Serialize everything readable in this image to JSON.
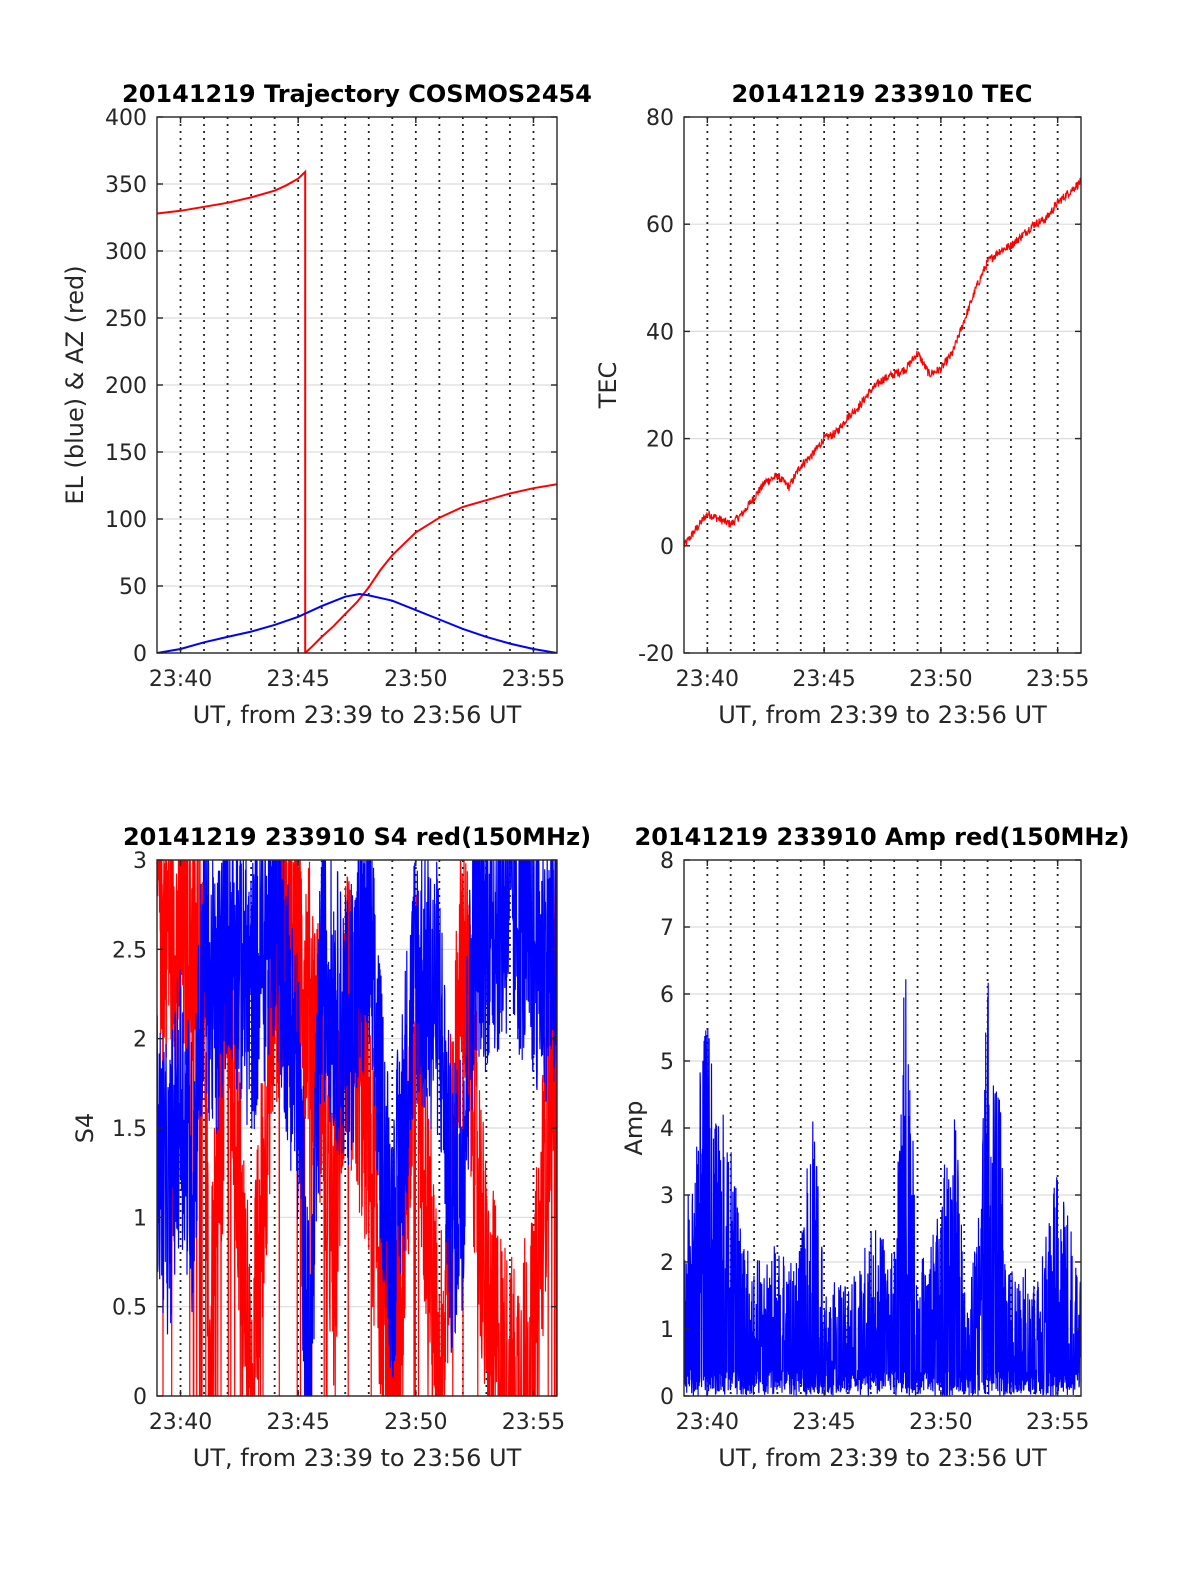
{
  "chart_data": [
    {
      "type": "line",
      "title": "20141219 Trajectory COSMOS2454",
      "xlabel": "UT, from 23:39 to 23:56 UT",
      "ylabel": "EL (blue) & AZ (red)",
      "xlim": [
        "23:39",
        "23:56"
      ],
      "ylim": [
        0,
        400
      ],
      "xticks": [
        "23:40",
        "23:45",
        "23:50",
        "23:55"
      ],
      "yticks": [
        "0",
        "50",
        "100",
        "150",
        "200",
        "250",
        "300",
        "350",
        "400"
      ],
      "grid": true,
      "series": [
        {
          "color": "#ff0000",
          "x": [
            "23:39",
            "23:40",
            "23:41",
            "23:42",
            "23:43",
            "23:44",
            "23:44.5",
            "23:45",
            "23:45.3",
            "23:45.3",
            "23:45.6",
            "23:46",
            "23:46.5",
            "23:47",
            "23:47.5",
            "23:48",
            "23:48.5",
            "23:49",
            "23:50",
            "23:51",
            "23:52",
            "23:53",
            "23:54",
            "23:55",
            "23:56"
          ],
          "values": [
            328,
            330,
            333,
            336,
            340,
            345,
            349,
            354,
            359,
            0,
            5,
            12,
            20,
            29,
            38,
            49,
            62,
            73,
            90,
            101,
            109,
            114,
            119,
            123,
            126
          ]
        },
        {
          "color": "#0000ff",
          "x": [
            "23:39",
            "23:40",
            "23:41",
            "23:42",
            "23:43",
            "23:44",
            "23:45",
            "23:46",
            "23:47",
            "23:47.6",
            "23:48",
            "23:49",
            "23:50",
            "23:51",
            "23:52",
            "23:53",
            "23:54",
            "23:55",
            "23:56"
          ],
          "values": [
            0,
            3,
            8,
            12,
            16,
            21,
            27,
            35,
            42,
            44,
            43,
            39,
            32,
            25,
            18,
            12,
            7,
            3,
            0
          ]
        }
      ]
    },
    {
      "type": "line",
      "title": "20141219 233910 TEC",
      "xlabel": "UT, from 23:39 to 23:56 UT",
      "ylabel": "TEC",
      "xlim": [
        "23:39",
        "23:56"
      ],
      "ylim": [
        -20,
        80
      ],
      "xticks": [
        "23:40",
        "23:45",
        "23:50",
        "23:55"
      ],
      "yticks": [
        "-20",
        "0",
        "20",
        "40",
        "60",
        "80"
      ],
      "grid": true,
      "series": [
        {
          "color": "#ff0000",
          "x": [
            "23:39",
            "23:39.5",
            "23:40",
            "23:40.5",
            "23:41",
            "23:41.5",
            "23:42",
            "23:42.5",
            "23:43",
            "23:43.5",
            "23:44",
            "23:44.5",
            "23:45",
            "23:45.5",
            "23:46",
            "23:46.5",
            "23:47",
            "23:47.5",
            "23:48",
            "23:48.5",
            "23:49",
            "23:49.5",
            "23:50",
            "23:50.5",
            "23:51",
            "23:51.5",
            "23:52",
            "23:52.5",
            "23:53",
            "23:53.5",
            "23:54",
            "23:54.5",
            "23:55",
            "23:55.5",
            "23:56"
          ],
          "values": [
            0,
            3,
            6,
            5,
            4,
            6,
            9,
            12,
            13,
            11,
            15,
            17,
            20,
            21,
            24,
            26,
            29,
            31,
            32,
            33,
            36,
            32,
            33,
            36,
            42,
            48,
            53,
            55,
            56,
            58,
            60,
            61,
            64,
            66,
            68
          ]
        }
      ]
    },
    {
      "type": "line",
      "title": "20141219 233910 S4 red(150MHz)",
      "xlabel": "UT, from 23:39 to 23:56 UT",
      "ylabel": "S4",
      "xlim": [
        "23:39",
        "23:56"
      ],
      "ylim": [
        0,
        3
      ],
      "xticks": [
        "23:40",
        "23:45",
        "23:50",
        "23:55"
      ],
      "yticks": [
        "0",
        "0.5",
        "1",
        "1.5",
        "2",
        "2.5",
        "3"
      ],
      "grid": true,
      "series": [
        {
          "color": "#ff0000",
          "x": [
            "23:39",
            "23:40",
            "23:41",
            "23:41.2",
            "23:42",
            "23:43",
            "23:44",
            "23:45",
            "23:46",
            "23:46.5",
            "23:47",
            "23:48",
            "23:49",
            "23:50",
            "23:51",
            "23:52",
            "23:53",
            "23:54",
            "23:55",
            "23:56"
          ],
          "values": [
            2.8,
            2.5,
            2.6,
            0,
            2.3,
            0,
            2.4,
            2.6,
            1.8,
            0.7,
            2.2,
            1.5,
            0,
            2.1,
            0,
            2.6,
            0.5,
            0,
            0.2,
            2.5
          ]
        },
        {
          "color": "#0000ff",
          "x": [
            "23:39",
            "23:39.5",
            "23:40",
            "23:40.5",
            "23:41",
            "23:41.5",
            "23:42",
            "23:43",
            "23:44",
            "23:45",
            "23:45.5",
            "23:46",
            "23:47",
            "23:48",
            "23:48.5",
            "23:49",
            "23:50",
            "23:51",
            "23:51.5",
            "23:52",
            "23:52.5",
            "23:53",
            "23:54",
            "23:55",
            "23:56"
          ],
          "values": [
            1.4,
            1.1,
            1.7,
            1.2,
            2.5,
            2.1,
            2.7,
            2.2,
            2.8,
            1.7,
            0,
            2.5,
            2.0,
            2.6,
            1.6,
            0.8,
            2.4,
            2.2,
            1.0,
            1.3,
            2.7,
            2.6,
            2.8,
            2.5,
            2.4
          ]
        }
      ]
    },
    {
      "type": "line",
      "title": "20141219 233910 Amp red(150MHz)",
      "xlabel": "UT, from 23:39 to 23:56 UT",
      "ylabel": "Amp",
      "xlim": [
        "23:39",
        "23:56"
      ],
      "ylim": [
        0,
        8
      ],
      "xticks": [
        "23:40",
        "23:45",
        "23:50",
        "23:55"
      ],
      "yticks": [
        "0",
        "1",
        "2",
        "3",
        "4",
        "5",
        "6",
        "7",
        "8"
      ],
      "grid": true,
      "series": [
        {
          "color": "#0000ff",
          "x": [
            "23:39",
            "23:39.5",
            "23:40",
            "23:40.5",
            "23:41",
            "23:41.5",
            "23:42",
            "23:43",
            "23:44",
            "23:44.5",
            "23:45",
            "23:46",
            "23:47",
            "23:48",
            "23:48.5",
            "23:49",
            "23:50",
            "23:50.5",
            "23:51",
            "23:51.5",
            "23:52",
            "23:52.5",
            "23:53",
            "23:54",
            "23:55",
            "23:56"
          ],
          "values": [
            2.3,
            3.9,
            5.2,
            4.1,
            3.4,
            2.2,
            1.8,
            2.1,
            2.0,
            4.1,
            1.6,
            1.5,
            2.4,
            1.9,
            6.3,
            1.7,
            2.6,
            4.5,
            1.8,
            2.1,
            5.7,
            4.5,
            1.8,
            1.7,
            3.1,
            1.6
          ]
        }
      ]
    }
  ]
}
